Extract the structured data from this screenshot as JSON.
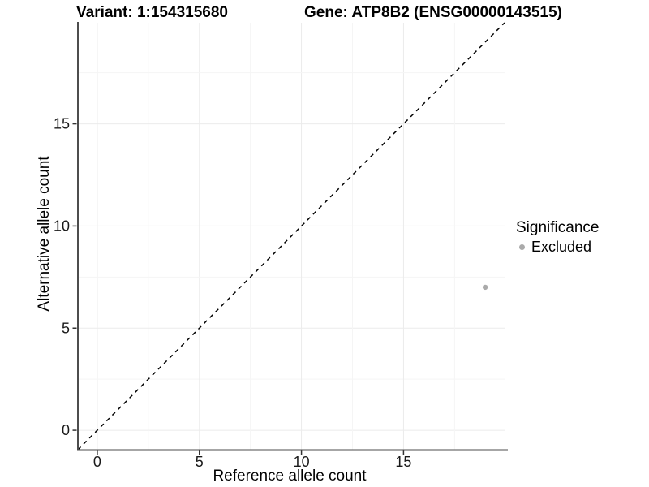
{
  "chart_data": {
    "type": "scatter",
    "title_left": "Variant: 1:154315680",
    "title_right": "Gene: ATP8B2 (ENSG00000143515)",
    "xlabel": "Reference allele count",
    "ylabel": "Alternative allele count",
    "xlim": [
      -0.95,
      19.95
    ],
    "ylim": [
      -0.95,
      19.95
    ],
    "x_ticks": [
      0,
      5,
      10,
      15
    ],
    "y_ticks": [
      0,
      5,
      10,
      15
    ],
    "grid": {
      "show": true,
      "minor_step": 2.5,
      "major_step": 5,
      "major_color": "#ebebeb",
      "minor_color": "#f5f5f5"
    },
    "reference_line": {
      "type": "identity",
      "style": "dashed",
      "color": "#000000",
      "from": [
        -0.95,
        -0.95
      ],
      "to": [
        19.95,
        19.95
      ]
    },
    "series": [
      {
        "name": "Excluded",
        "marker": "circle",
        "color": "#aaaaaa",
        "points": [
          {
            "x": 19,
            "y": 7
          }
        ]
      }
    ],
    "legend": {
      "title": "Significance",
      "position": "right",
      "entries": [
        {
          "label": "Excluded",
          "color": "#aaaaaa",
          "marker": "circle"
        }
      ]
    },
    "axis_color": "#4d4d4d",
    "tick_color": "#333333",
    "text_color": "#1a1a1a",
    "background": "#ffffff"
  }
}
